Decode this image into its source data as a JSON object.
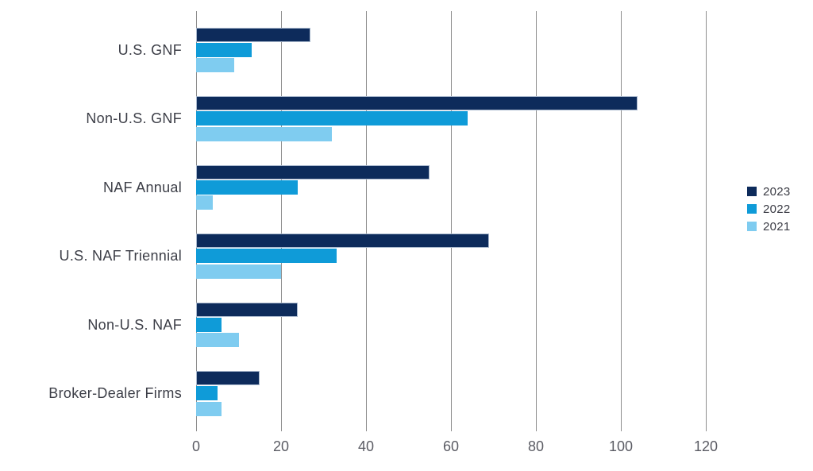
{
  "chart_data": {
    "type": "bar",
    "orientation": "horizontal",
    "title": "",
    "xlabel": "",
    "ylabel": "",
    "categories": [
      "U.S. GNF",
      "Non-U.S. GNF",
      "NAF Annual",
      "U.S. NAF Triennial",
      "Non-U.S. NAF",
      "Broker-Dealer Firms"
    ],
    "series": [
      {
        "name": "2023",
        "color": "#0d2b5b",
        "values": [
          27,
          104,
          55,
          69,
          24,
          15
        ]
      },
      {
        "name": "2022",
        "color": "#0f9bd8",
        "values": [
          13,
          64,
          24,
          33,
          6,
          5
        ]
      },
      {
        "name": "2021",
        "color": "#7fccf0",
        "values": [
          9,
          32,
          4,
          20,
          10,
          6
        ]
      }
    ],
    "x_ticks": [
      0,
      20,
      40,
      60,
      80,
      100,
      120
    ],
    "xlim": [
      0,
      120
    ],
    "grid": "vertical-only",
    "legend_position": "right-middle"
  },
  "colors": {
    "background": "#ffffff",
    "gridline": "#8e8e8e",
    "category_label": "#3c3e47",
    "tick_label": "#5b5c64",
    "legend_label": "#3a3b44"
  }
}
